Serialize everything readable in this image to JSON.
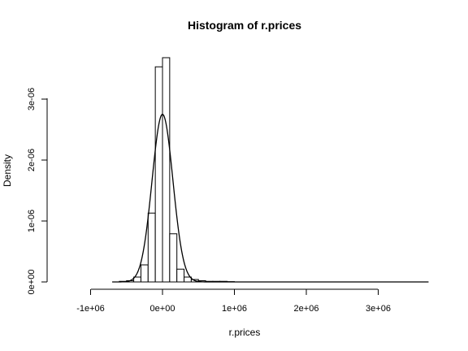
{
  "chart_data": {
    "type": "bar",
    "title": "Histogram of r.prices",
    "xlabel": "r.prices",
    "ylabel": "Density",
    "x_ticks": [
      -1000000,
      0,
      1000000,
      2000000,
      3000000
    ],
    "x_tick_labels": [
      "-1e+06",
      "0e+00",
      "1e+06",
      "2e+06",
      "3e+06"
    ],
    "y_ticks": [
      0,
      1e-06,
      2e-06,
      3e-06
    ],
    "y_tick_labels": [
      "0e+00",
      "1e-06",
      "2e-06",
      "3e-06"
    ],
    "xlim": [
      -1400000,
      3700000
    ],
    "ylim": [
      0,
      3.75e-06
    ],
    "bin_width": 100000,
    "bins": [
      {
        "start": -700000,
        "end": -600000,
        "density": 0.0
      },
      {
        "start": -600000,
        "end": -500000,
        "density": 1e-08
      },
      {
        "start": -500000,
        "end": -400000,
        "density": 2e-08
      },
      {
        "start": -400000,
        "end": -300000,
        "density": 8e-08
      },
      {
        "start": -300000,
        "end": -200000,
        "density": 2.8e-07
      },
      {
        "start": -200000,
        "end": -100000,
        "density": 1.13e-06
      },
      {
        "start": -100000,
        "end": 0,
        "density": 3.53e-06
      },
      {
        "start": 0,
        "end": 100000,
        "density": 3.68e-06
      },
      {
        "start": 100000,
        "end": 200000,
        "density": 7.9e-07
      },
      {
        "start": 200000,
        "end": 300000,
        "density": 2.1e-07
      },
      {
        "start": 300000,
        "end": 400000,
        "density": 8e-08
      },
      {
        "start": 400000,
        "end": 500000,
        "density": 4e-08
      },
      {
        "start": 500000,
        "end": 600000,
        "density": 2e-08
      },
      {
        "start": 600000,
        "end": 700000,
        "density": 1e-08
      },
      {
        "start": 700000,
        "end": 800000,
        "density": 1e-08
      },
      {
        "start": 800000,
        "end": 900000,
        "density": 1e-08
      },
      {
        "start": 900000,
        "end": 1000000,
        "density": 5e-09
      },
      {
        "start": 1000000,
        "end": 3700000,
        "density": 0.0
      }
    ],
    "density_curve": {
      "type": "normal",
      "mean": 0,
      "sd": 145000
    },
    "grid": false,
    "legend": "none"
  }
}
